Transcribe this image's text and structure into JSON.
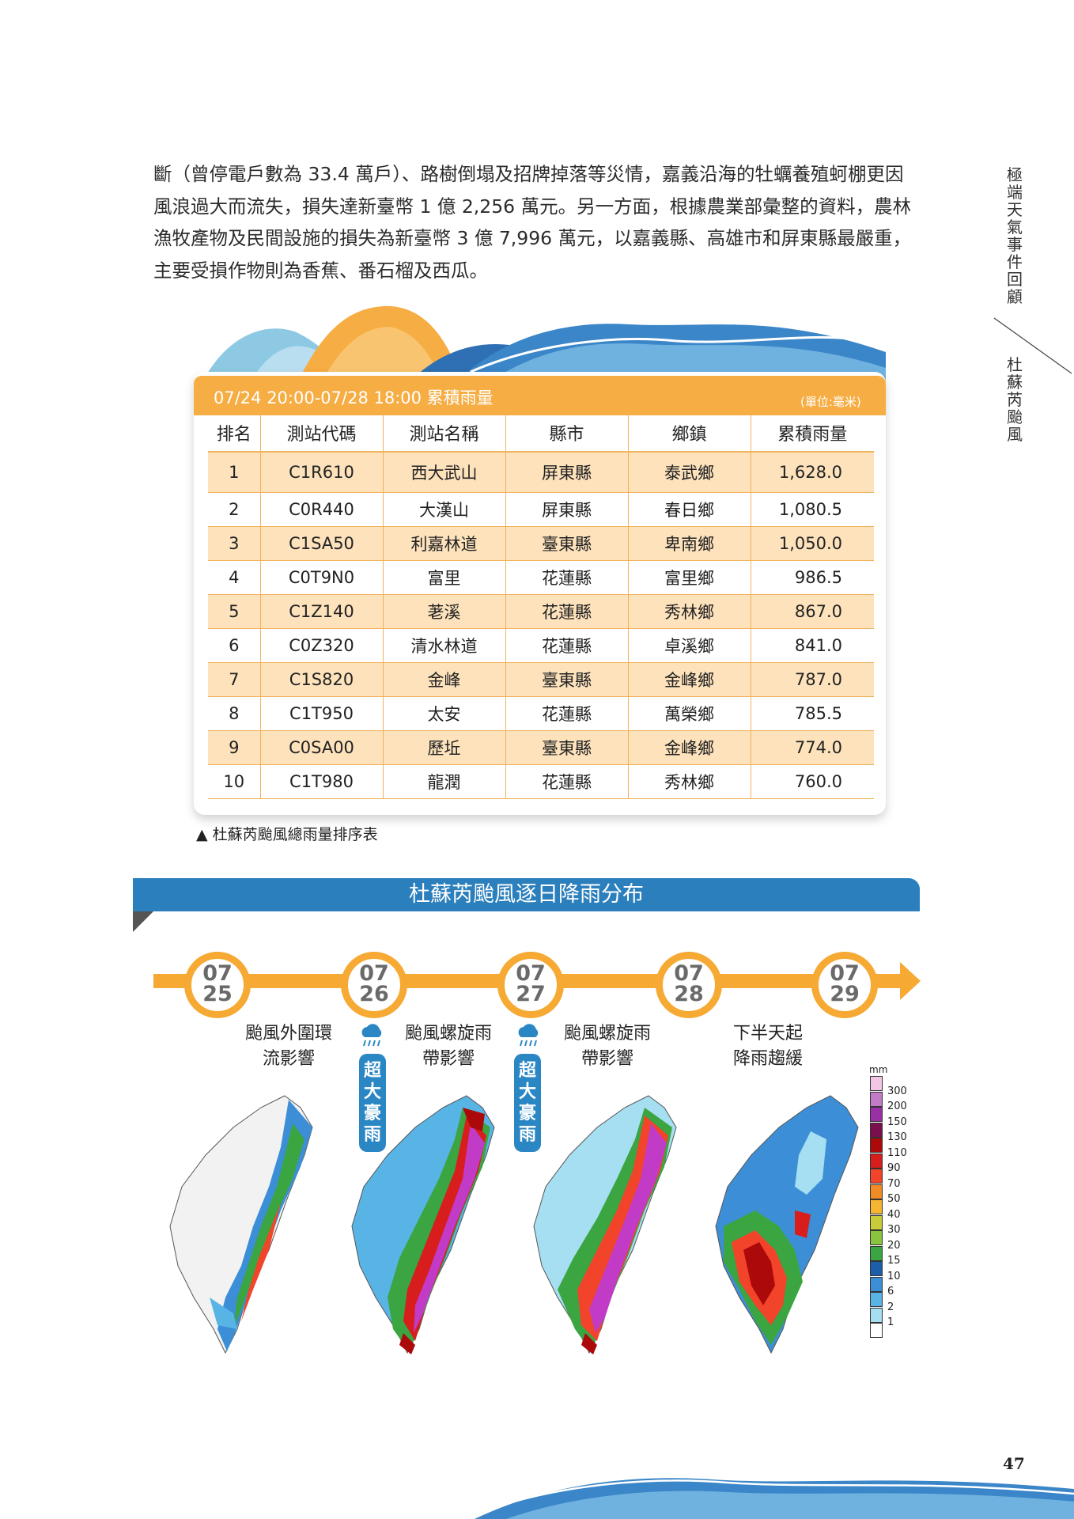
{
  "side_titles": {
    "section": "極端天氣事件回顧",
    "chapter": "杜蘇芮颱風"
  },
  "paragraph": [
    "斷（曾停電戶數為 33.4 萬戶）、路樹倒塌及招牌掉落等災情，嘉義沿海的牡蠣養殖蚵棚更因",
    "風浪過大而流失，損失達新臺幣 1 億 2,256 萬元。另一方面，根據農業部彙整的資料，農林",
    "漁牧產物及民間設施的損失為新臺幣 3 億 7,996 萬元，以嘉義縣、高雄市和屏東縣最嚴重，",
    "主要受損作物則為香蕉、番石榴及西瓜。"
  ],
  "table": {
    "title": "07/24  20:00-07/28 18:00 累積雨量",
    "unit": "(單位:毫米)",
    "headers": [
      "排名",
      "測站代碼",
      "測站名稱",
      "縣市",
      "鄉鎮",
      "累積雨量"
    ],
    "rows": [
      [
        "1",
        "C1R610",
        "西大武山",
        "屏東縣",
        "泰武鄉",
        "1,628.0"
      ],
      [
        "2",
        "C0R440",
        "大漢山",
        "屏東縣",
        "春日鄉",
        "1,080.5"
      ],
      [
        "3",
        "C1SA50",
        "利嘉林道",
        "臺東縣",
        "卑南鄉",
        "1,050.0"
      ],
      [
        "4",
        "C0T9N0",
        "富里",
        "花蓮縣",
        "富里鄉",
        "986.5"
      ],
      [
        "5",
        "C1Z140",
        "荖溪",
        "花蓮縣",
        "秀林鄉",
        "867.0"
      ],
      [
        "6",
        "C0Z320",
        "清水林道",
        "花蓮縣",
        "卓溪鄉",
        "841.0"
      ],
      [
        "7",
        "C1S820",
        "金峰",
        "臺東縣",
        "金峰鄉",
        "787.0"
      ],
      [
        "8",
        "C1T950",
        "太安",
        "花蓮縣",
        "萬榮鄉",
        "785.5"
      ],
      [
        "9",
        "C0SA00",
        "歷坵",
        "臺東縣",
        "金峰鄉",
        "774.0"
      ],
      [
        "10",
        "C1T980",
        "龍潤",
        "花蓮縣",
        "秀林鄉",
        "760.0"
      ]
    ],
    "caption": "▲ 杜蘇芮颱風總雨量排序表"
  },
  "banner_title": "杜蘇芮颱風逐日降雨分布",
  "timeline": {
    "dates": [
      {
        "month": "07",
        "day": "25"
      },
      {
        "month": "07",
        "day": "26"
      },
      {
        "month": "07",
        "day": "27"
      },
      {
        "month": "07",
        "day": "28"
      },
      {
        "month": "07",
        "day": "29"
      }
    ],
    "labels": [
      [
        "颱風外圍環",
        "流影響"
      ],
      [
        "颱風螺旋雨",
        "帶影響"
      ],
      [
        "颱風螺旋雨",
        "帶影響"
      ],
      [
        "下半天起",
        "降雨趨緩"
      ]
    ],
    "heavy_rain_badge": "超大豪雨"
  },
  "legend": {
    "unit": "mm",
    "levels": [
      "300",
      "200",
      "150",
      "130",
      "110",
      "90",
      "70",
      "50",
      "40",
      "30",
      "20",
      "15",
      "10",
      "6",
      "2",
      "1"
    ],
    "colors": [
      "#f4c6e6",
      "#c27bc6",
      "#9a2fa6",
      "#7a0f4d",
      "#ac0a0a",
      "#d81d1d",
      "#f2442a",
      "#f28a25",
      "#f6b433",
      "#c8cc3a",
      "#8ac43f",
      "#3aa541",
      "#1d5ea8",
      "#3c8fd6",
      "#59b4e6",
      "#a6def2",
      "#ffffff"
    ]
  },
  "page_number": "47",
  "colors": {
    "accent_orange": "#f6ad43",
    "row_highlight": "#fde2bc",
    "banner_blue": "#2b7fbd"
  }
}
